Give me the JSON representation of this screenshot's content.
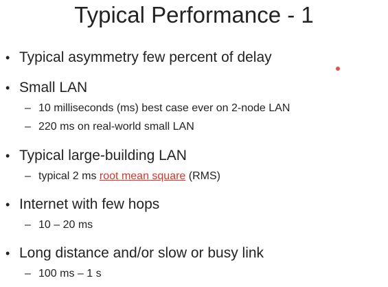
{
  "slide": {
    "title": "Typical Performance - 1",
    "bullet_symbol": "•",
    "dash_symbol": "–",
    "items": [
      {
        "text": "Typical asymmetry few percent of delay"
      },
      {
        "text": "Small LAN",
        "subitems": [
          "10 milliseconds (ms) best case ever on 2-node LAN",
          "220 ms on real-world small LAN"
        ]
      },
      {
        "text": "Typical large-building LAN",
        "sub_prefix": "typical 2 ms ",
        "sub_link": "root mean square",
        "sub_suffix": " (RMS)"
      },
      {
        "text": "Internet with few hops",
        "subitems": [
          "10 – 20 ms"
        ]
      },
      {
        "text": "Long distance and/or slow or busy link",
        "subitems": [
          "100 ms – 1 s"
        ]
      }
    ]
  },
  "colors": {
    "link": "#d9342b",
    "pointer": "#e8504a"
  }
}
